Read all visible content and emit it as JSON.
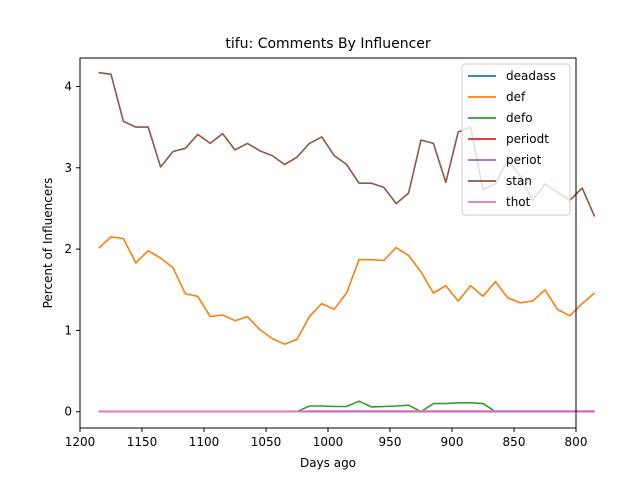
{
  "chart_data": {
    "type": "line",
    "title": "tifu: Comments By Influencer",
    "xlabel": "Days ago",
    "ylabel": "Percent of Influencers",
    "xlim": [
      1200,
      800
    ],
    "ylim": [
      -0.2,
      4.35
    ],
    "xticks": [
      1200,
      1150,
      1100,
      1050,
      1000,
      950,
      900,
      850,
      800
    ],
    "yticks": [
      0,
      1,
      2,
      3,
      4
    ],
    "grid": false,
    "legend_placement": "top-right",
    "x": [
      1185,
      1175,
      1165,
      1155,
      1145,
      1135,
      1125,
      1115,
      1105,
      1095,
      1085,
      1075,
      1065,
      1055,
      1045,
      1035,
      1025,
      1015,
      1005,
      995,
      985,
      975,
      965,
      955,
      945,
      935,
      925,
      915,
      905,
      895,
      885,
      875,
      865,
      855,
      845,
      835,
      825,
      815,
      805,
      795,
      785
    ],
    "series": [
      {
        "name": "deadass",
        "color": "#1f77b4",
        "values": [
          0,
          0,
          0,
          0,
          0,
          0,
          0,
          0,
          0,
          0,
          0,
          0,
          0,
          0,
          0,
          0,
          0,
          0,
          0,
          0,
          0,
          0,
          0,
          0,
          0,
          0,
          0,
          0,
          0,
          0,
          0,
          0,
          0,
          0,
          0,
          0,
          0,
          0,
          0,
          0,
          0
        ]
      },
      {
        "name": "def",
        "color": "#ff7f0e",
        "values": [
          2.01,
          2.15,
          2.13,
          1.83,
          1.98,
          1.89,
          1.77,
          1.45,
          1.42,
          1.17,
          1.19,
          1.12,
          1.17,
          1.01,
          0.9,
          0.83,
          0.89,
          1.17,
          1.33,
          1.26,
          1.46,
          1.87,
          1.87,
          1.86,
          2.02,
          1.92,
          1.72,
          1.46,
          1.55,
          1.36,
          1.55,
          1.42,
          1.6,
          1.4,
          1.34,
          1.36,
          1.5,
          1.26,
          1.18,
          1.33,
          1.46
        ]
      },
      {
        "name": "defo",
        "color": "#2ca02c",
        "values": [
          0,
          0,
          0,
          0,
          0,
          0,
          0,
          0,
          0,
          0,
          0,
          0,
          0,
          0,
          0,
          0,
          0,
          0.07,
          0.07,
          0.065,
          0.065,
          0.13,
          0.06,
          0.065,
          0.07,
          0.08,
          0.0,
          0.1,
          0.1,
          0.11,
          0.11,
          0.1,
          0,
          0,
          0,
          0,
          0,
          0,
          0,
          0,
          0
        ]
      },
      {
        "name": "periodt",
        "color": "#d62728",
        "values": [
          0,
          0,
          0,
          0,
          0,
          0,
          0,
          0,
          0,
          0,
          0,
          0,
          0,
          0,
          0,
          0,
          0,
          0,
          0,
          0,
          0,
          0,
          0,
          0,
          0,
          0,
          0,
          0,
          0,
          0,
          0,
          0,
          0,
          0,
          0,
          0,
          0,
          0,
          0,
          0,
          0
        ]
      },
      {
        "name": "periot",
        "color": "#9467bd",
        "values": [
          0,
          0,
          0,
          0,
          0,
          0,
          0,
          0,
          0,
          0,
          0,
          0,
          0,
          0,
          0,
          0,
          0,
          0,
          0,
          0,
          0,
          0,
          0,
          0,
          0,
          0,
          0,
          0,
          0,
          0,
          0,
          0,
          0,
          0,
          0,
          0,
          0,
          0,
          0,
          0,
          0
        ]
      },
      {
        "name": "stan",
        "color": "#8c564b",
        "values": [
          4.17,
          4.15,
          3.57,
          3.5,
          3.5,
          3.01,
          3.2,
          3.24,
          3.41,
          3.3,
          3.42,
          3.22,
          3.3,
          3.21,
          3.15,
          3.04,
          3.13,
          3.3,
          3.38,
          3.15,
          3.04,
          2.81,
          2.81,
          2.76,
          2.56,
          2.69,
          3.34,
          3.3,
          2.82,
          3.44,
          3.5,
          2.73,
          2.8,
          3.1,
          2.9,
          2.6,
          2.8,
          2.7,
          2.6,
          2.75,
          2.4
        ]
      },
      {
        "name": "thot",
        "color": "#e377c2",
        "values": [
          0,
          0,
          0,
          0,
          0,
          0,
          0,
          0,
          0,
          0,
          0,
          0,
          0,
          0,
          0,
          0,
          0,
          0.01,
          0.01,
          0.01,
          0.01,
          0.01,
          0.01,
          0.01,
          0.01,
          0.01,
          0.01,
          0.01,
          0.01,
          0.01,
          0.01,
          0.01,
          0.01,
          0.01,
          0.01,
          0.01,
          0.01,
          0.01,
          0.01,
          0.01,
          0.01
        ]
      }
    ]
  }
}
